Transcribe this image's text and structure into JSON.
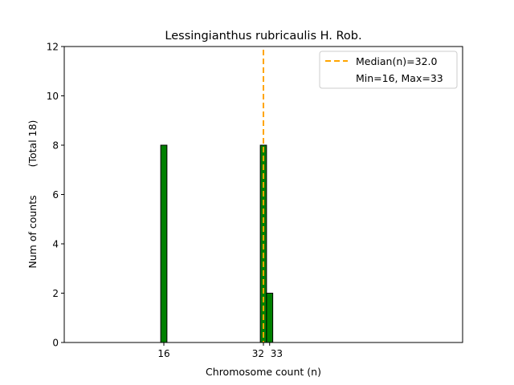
{
  "chart_data": {
    "type": "bar",
    "title": "Lessingianthus rubricaulis H. Rob.",
    "xlabel": "Chromosome count (n)",
    "ylabel": "Num of counts",
    "ylabel_total": "(Total 18)",
    "xlim": [
      0,
      64
    ],
    "ylim": [
      0,
      12
    ],
    "x": [
      16,
      32,
      33
    ],
    "values": [
      8,
      8,
      2
    ],
    "bar_width": 1,
    "bar_color": "#008000",
    "xticks": [
      16,
      32,
      33
    ],
    "yticks": [
      0,
      2,
      4,
      6,
      8,
      10,
      12
    ],
    "median": 32.0,
    "median_color": "#FFA500",
    "legend": {
      "placement": "top-right",
      "entries": [
        "Median(n)=32.0",
        "Min=16, Max=33"
      ]
    },
    "grid": false
  }
}
